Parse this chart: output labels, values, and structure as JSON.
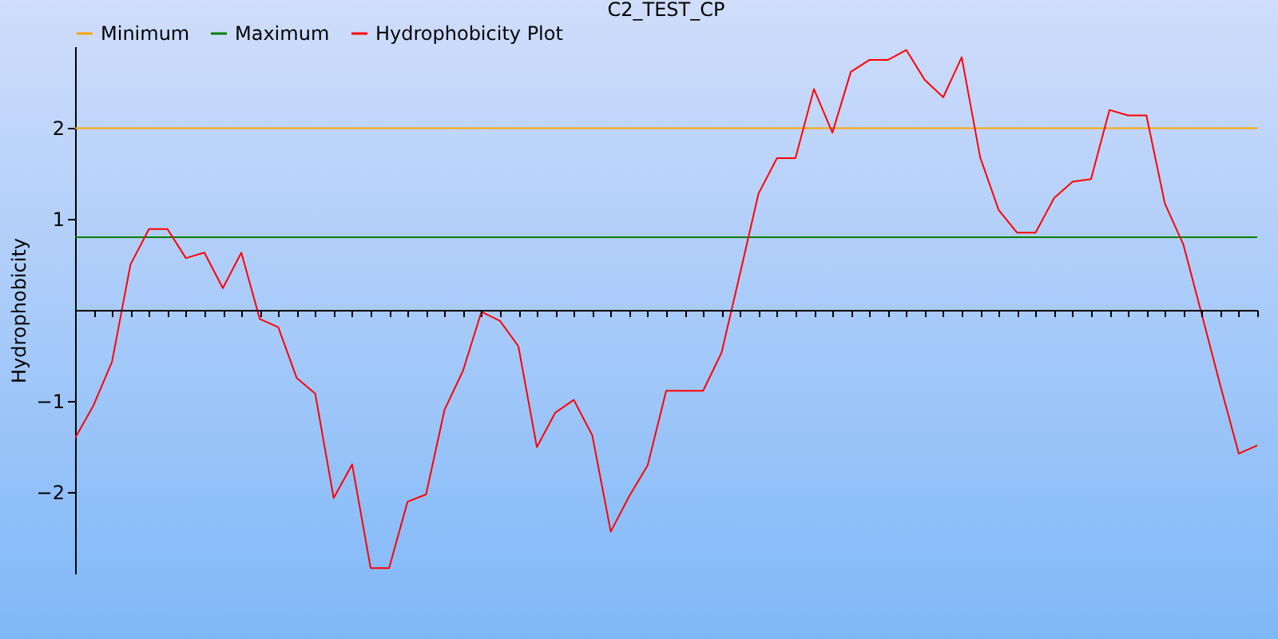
{
  "chart_data": {
    "type": "line",
    "title": "C2_TEST_CP",
    "ylabel": "Hydrophobicity",
    "categories": [
      null,
      null,
      null,
      null,
      null,
      null,
      null,
      null,
      null,
      null,
      null,
      null,
      null,
      null,
      null,
      null,
      null,
      null,
      null,
      null,
      null,
      null,
      null,
      null,
      null,
      null,
      null,
      null,
      null,
      null,
      null,
      null,
      null,
      null,
      null,
      null,
      null,
      null,
      null,
      null,
      null,
      null,
      null,
      null,
      null,
      null,
      null,
      null,
      null,
      null,
      null,
      null,
      null,
      null,
      null,
      null,
      null,
      null,
      null,
      null,
      null,
      null,
      null,
      null,
      null
    ],
    "series": [
      {
        "name": "Minimum",
        "color": "#ffa500",
        "values": [
          2,
          2,
          2,
          2,
          2,
          2,
          2,
          2,
          2,
          2,
          2,
          2,
          2,
          2,
          2,
          2,
          2,
          2,
          2,
          2,
          2,
          2,
          2,
          2,
          2,
          2,
          2,
          2,
          2,
          2,
          2,
          2,
          2,
          2,
          2,
          2,
          2,
          2,
          2,
          2,
          2,
          2,
          2,
          2,
          2,
          2,
          2,
          2,
          2,
          2,
          2,
          2,
          2,
          2,
          2,
          2,
          2,
          2,
          2,
          2,
          2,
          2,
          2,
          2,
          2
        ]
      },
      {
        "name": "Maximum",
        "color": "#008000",
        "values": [
          0.8,
          0.8,
          0.8,
          0.8,
          0.8,
          0.8,
          0.8,
          0.8,
          0.8,
          0.8,
          0.8,
          0.8,
          0.8,
          0.8,
          0.8,
          0.8,
          0.8,
          0.8,
          0.8,
          0.8,
          0.8,
          0.8,
          0.8,
          0.8,
          0.8,
          0.8,
          0.8,
          0.8,
          0.8,
          0.8,
          0.8,
          0.8,
          0.8,
          0.8,
          0.8,
          0.8,
          0.8,
          0.8,
          0.8,
          0.8,
          0.8,
          0.8,
          0.8,
          0.8,
          0.8,
          0.8,
          0.8,
          0.8,
          0.8,
          0.8,
          0.8,
          0.8,
          0.8,
          0.8,
          0.8,
          0.8,
          0.8,
          0.8,
          0.8,
          0.8,
          0.8,
          0.8,
          0.8,
          0.8,
          0.8
        ]
      },
      {
        "name": "Hydrophobicity Plot",
        "color": "#ff0000",
        "values": [
          -1.41,
          -1.05,
          -0.57,
          0.5,
          0.89,
          0.89,
          0.57,
          0.63,
          0.24,
          0.63,
          -0.1,
          -0.19,
          -0.75,
          -0.92,
          -2.07,
          -1.7,
          -2.84,
          -2.84,
          -2.11,
          -2.03,
          -1.1,
          -0.67,
          -0.02,
          -0.12,
          -0.4,
          -1.51,
          -1.13,
          -0.99,
          -1.38,
          -2.44,
          -2.05,
          -1.71,
          -0.89,
          -0.89,
          -0.89,
          -0.47,
          0.4,
          1.28,
          1.67,
          1.67,
          2.43,
          1.95,
          2.62,
          2.75,
          2.75,
          2.86,
          2.53,
          2.34,
          2.78,
          1.68,
          1.1,
          0.85,
          0.85,
          1.23,
          1.41,
          1.44,
          2.2,
          2.14,
          2.14,
          1.17,
          0.72,
          -0.05,
          -0.83,
          -1.58,
          -1.49
        ]
      }
    ],
    "ylim": [
      -2.9,
      2.9
    ],
    "yticks": [
      -2,
      -1,
      1,
      2
    ],
    "tick_labels": "y",
    "legend": "top",
    "line_style": "solid"
  }
}
